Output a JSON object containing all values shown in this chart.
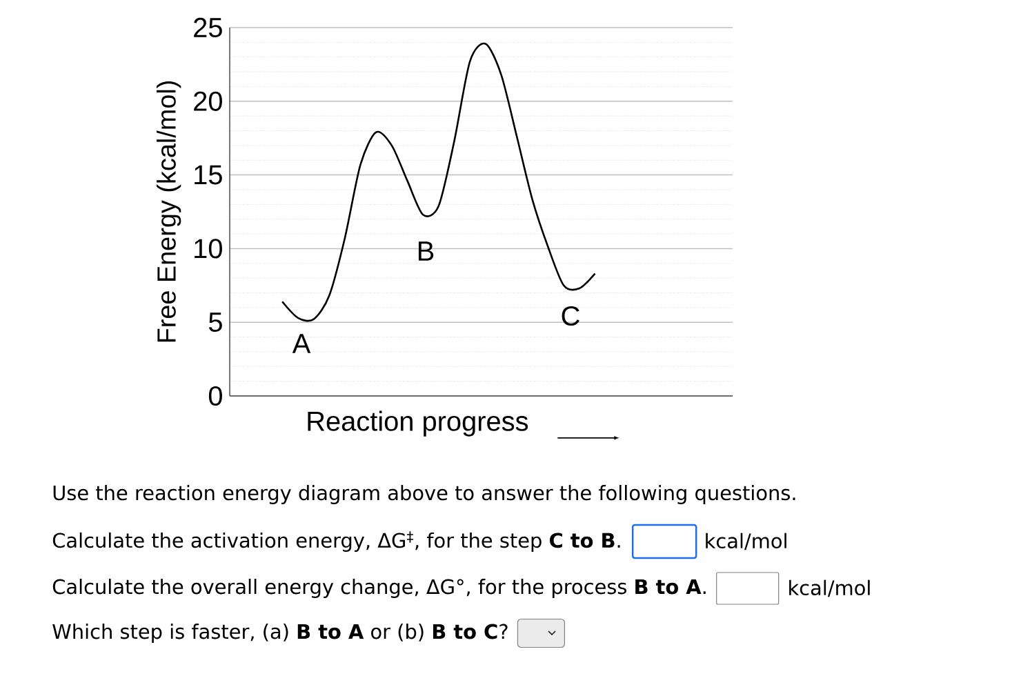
{
  "chart_data": {
    "type": "line",
    "ylabel": "Free Energy (kcal/mol)",
    "xlabel": "Reaction progress",
    "categories": [
      null,
      null,
      null,
      null,
      null,
      null,
      null,
      null,
      null,
      null,
      null,
      null,
      null,
      null,
      null,
      null,
      null,
      null,
      null,
      null,
      null
    ],
    "values": [
      6.4,
      5.3,
      5.2,
      6.8,
      10.7,
      15.7,
      17.9,
      17.0,
      14.6,
      12.3,
      12.9,
      17.3,
      22.7,
      23.9,
      21.8,
      17.6,
      13.3,
      10.1,
      7.5,
      7.3,
      8.3
    ],
    "color": "#000000",
    "ylim": [
      0,
      25
    ],
    "yticks": [
      0,
      5,
      10,
      15,
      20,
      25
    ],
    "grid": "y",
    "tick_labels": "y",
    "annotations": [
      "A",
      "B",
      "C",
      "Use the reaction energy diagram above to answer the following questions.",
      "Calculate the activation energy, ΔG$^{‡}$, for the step **C to B**.",
      "kcal/mol",
      "Calculate the overall energy change, ΔG°, for the process **B to A**.",
      "kcal/mol",
      "Which step is faster, (a) **B to A** or (b) **B to C**?"
    ]
  }
}
